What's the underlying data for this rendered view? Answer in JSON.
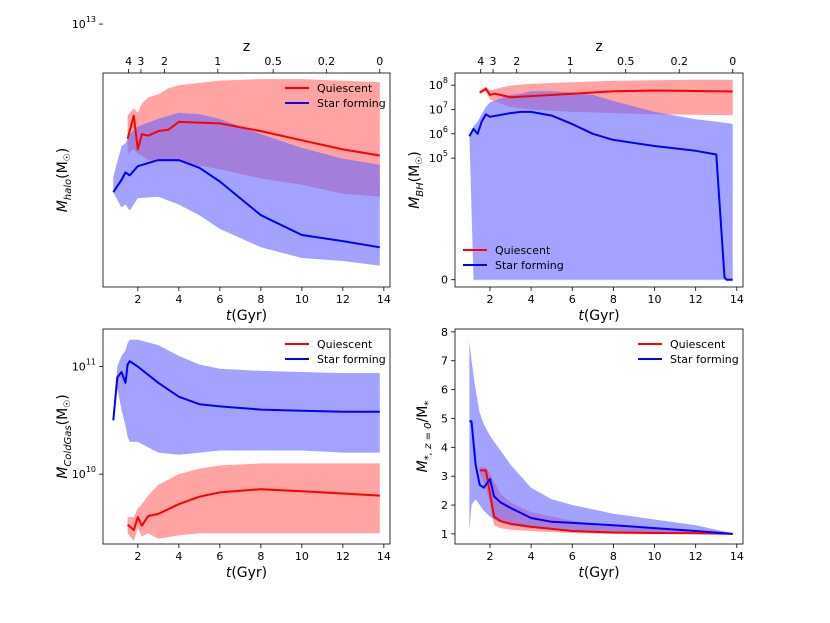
{
  "colors": {
    "quiescent": "#ff0000",
    "star_forming": "#0000ff",
    "quiescent_band": "#ff6666",
    "star_forming_band": "#6666ff"
  },
  "chart_data": [
    {
      "id": "halo",
      "type": "line",
      "title": "",
      "xlabel_t": "t",
      "xlabel_rest": "(Gyr)",
      "ylabel_main": "M",
      "ylabel_sub": "halo",
      "ylabel_tail": "(M",
      "ylabel_end": ")",
      "x_ticks": [
        "2",
        "4",
        "6",
        "8",
        "10",
        "12",
        "14"
      ],
      "y_ticks": [
        {
          "label": "10",
          "exp": "13",
          "value": 1
        }
      ],
      "top_axis": {
        "label": "z",
        "ticks": [
          "4",
          "3",
          "2",
          "1",
          "0.5",
          "0.2",
          "0"
        ]
      },
      "xlim": [
        0.3,
        14.3
      ],
      "ylim": [
        -0.72,
        0.68
      ],
      "legend": {
        "position": "top-right",
        "entries": [
          "Quiescent",
          "Star forming"
        ]
      },
      "series": [
        {
          "name": "Quiescent",
          "x": [
            1.5,
            1.8,
            2.0,
            2.2,
            2.5,
            3.0,
            3.5,
            4.0,
            6.0,
            8.0,
            10.0,
            12.0,
            13.8
          ],
          "y": [
            0.25,
            0.4,
            0.18,
            0.28,
            0.27,
            0.3,
            0.31,
            0.36,
            0.35,
            0.3,
            0.24,
            0.18,
            0.14
          ],
          "upper": [
            0.4,
            0.45,
            0.42,
            0.48,
            0.52,
            0.54,
            0.58,
            0.6,
            0.63,
            0.64,
            0.64,
            0.63,
            0.62
          ],
          "lower": [
            0.15,
            0.18,
            0.15,
            0.14,
            0.11,
            0.1,
            0.1,
            0.1,
            0.05,
            -0.01,
            -0.05,
            -0.11,
            -0.13
          ]
        },
        {
          "name": "Star forming",
          "x": [
            0.8,
            1.0,
            1.2,
            1.4,
            1.6,
            2.0,
            3.0,
            4.0,
            5.0,
            6.0,
            8.0,
            10.0,
            12.0,
            13.8
          ],
          "y": [
            -0.1,
            -0.06,
            -0.02,
            0.03,
            0.01,
            0.07,
            0.11,
            0.11,
            0.06,
            -0.03,
            -0.25,
            -0.38,
            -0.42,
            -0.46
          ],
          "upper": [
            0.0,
            0.1,
            0.2,
            0.22,
            0.28,
            0.33,
            0.38,
            0.42,
            0.41,
            0.38,
            0.28,
            0.19,
            0.12,
            0.08
          ],
          "lower": [
            -0.1,
            -0.15,
            -0.2,
            -0.18,
            -0.22,
            -0.14,
            -0.13,
            -0.18,
            -0.25,
            -0.34,
            -0.46,
            -0.53,
            -0.55,
            -0.58
          ]
        }
      ]
    },
    {
      "id": "bh",
      "type": "line",
      "title": "",
      "xlabel_t": "t",
      "xlabel_rest": "(Gyr)",
      "ylabel_main": "M",
      "ylabel_sub": "BH",
      "ylabel_tail": "(M",
      "ylabel_end": ")",
      "x_ticks": [
        "2",
        "4",
        "6",
        "8",
        "10",
        "12",
        "14"
      ],
      "y_ticks": [
        {
          "label": "0",
          "exp": "",
          "value": 0
        },
        {
          "label": "10",
          "exp": "5",
          "value": 5
        },
        {
          "label": "10",
          "exp": "6",
          "value": 6
        },
        {
          "label": "10",
          "exp": "7",
          "value": 7
        },
        {
          "label": "10",
          "exp": "8",
          "value": 8
        }
      ],
      "top_axis": {
        "label": "z",
        "ticks": [
          "4",
          "3",
          "2",
          "1",
          "0.5",
          "0.2",
          "0"
        ]
      },
      "xlim": [
        0.3,
        14.3
      ],
      "ylim": [
        -0.3,
        8.5
      ],
      "legend": {
        "position": "lower-left",
        "entries": [
          "Quiescent",
          "Star forming"
        ]
      },
      "series": [
        {
          "name": "Quiescent",
          "x": [
            1.5,
            1.8,
            2.0,
            2.2,
            2.5,
            3.0,
            4.0,
            6.0,
            8.0,
            10.0,
            12.0,
            13.8
          ],
          "y": [
            7.7,
            7.85,
            7.6,
            7.65,
            7.6,
            7.5,
            7.55,
            7.65,
            7.75,
            7.78,
            7.76,
            7.74
          ],
          "upper": [
            7.75,
            7.95,
            7.8,
            7.82,
            7.9,
            7.98,
            8.05,
            8.12,
            8.18,
            8.2,
            8.22,
            8.22
          ],
          "lower": [
            7.65,
            7.75,
            7.4,
            7.35,
            7.25,
            7.1,
            7.0,
            6.9,
            6.85,
            6.8,
            6.78,
            6.76
          ]
        },
        {
          "name": "Star forming",
          "x": [
            1.0,
            1.2,
            1.4,
            1.6,
            1.8,
            2.0,
            3.0,
            3.5,
            4.0,
            5.0,
            6.0,
            7.0,
            8.0,
            10.0,
            12.0,
            13.0,
            13.4,
            13.5,
            13.8
          ],
          "y": [
            5.9,
            6.2,
            6.0,
            6.5,
            6.8,
            6.7,
            6.85,
            6.9,
            6.9,
            6.75,
            6.4,
            6.0,
            5.75,
            5.5,
            5.3,
            5.15,
            0.1,
            0,
            0
          ],
          "upper": [
            5.9,
            6.3,
            6.5,
            6.8,
            7.1,
            7.3,
            7.6,
            7.65,
            7.75,
            7.75,
            7.7,
            7.6,
            7.35,
            6.9,
            6.6,
            6.5,
            6.45,
            6.45,
            6.4
          ],
          "lower": [
            5.9,
            0,
            0,
            0,
            0,
            0,
            0,
            0,
            0,
            0,
            0,
            0,
            0,
            0,
            0,
            0,
            0,
            0,
            0
          ]
        }
      ]
    },
    {
      "id": "coldgas",
      "type": "line",
      "title": "",
      "xlabel_t": "t",
      "xlabel_rest": "(Gyr)",
      "ylabel_main": "M",
      "ylabel_sub": "ColdGas",
      "ylabel_tail": "(M",
      "ylabel_end": ")",
      "x_ticks": [
        "2",
        "4",
        "6",
        "8",
        "10",
        "12",
        "14"
      ],
      "y_ticks": [
        {
          "label": "10",
          "exp": "10",
          "value": 10
        },
        {
          "label": "10",
          "exp": "11",
          "value": 11
        }
      ],
      "top_axis": null,
      "xlim": [
        0.3,
        14.3
      ],
      "ylim": [
        9.35,
        11.35
      ],
      "legend": {
        "position": "top-right",
        "entries": [
          "Quiescent",
          "Star forming"
        ]
      },
      "series": [
        {
          "name": "Quiescent",
          "x": [
            1.5,
            1.8,
            2.0,
            2.2,
            2.5,
            3.0,
            4.0,
            5.0,
            6.0,
            8.0,
            10.0,
            12.0,
            13.8
          ],
          "y": [
            9.53,
            9.48,
            9.6,
            9.52,
            9.61,
            9.63,
            9.72,
            9.79,
            9.83,
            9.86,
            9.84,
            9.82,
            9.8
          ],
          "upper": [
            9.6,
            9.6,
            9.68,
            9.72,
            9.8,
            9.9,
            10.0,
            10.05,
            10.08,
            10.1,
            10.1,
            10.1,
            10.1
          ],
          "lower": [
            9.45,
            9.38,
            9.5,
            9.42,
            9.45,
            9.4,
            9.43,
            9.45,
            9.45,
            9.45,
            9.45,
            9.45,
            9.45
          ]
        },
        {
          "name": "Star forming",
          "x": [
            0.8,
            1.0,
            1.2,
            1.4,
            1.5,
            1.6,
            2.0,
            3.0,
            4.0,
            5.0,
            6.0,
            8.0,
            10.0,
            12.0,
            13.8
          ],
          "y": [
            10.5,
            10.9,
            10.95,
            10.85,
            11.02,
            11.05,
            11.0,
            10.85,
            10.72,
            10.65,
            10.63,
            10.6,
            10.59,
            10.58,
            10.58
          ],
          "upper": [
            10.5,
            11.0,
            11.1,
            11.15,
            11.22,
            11.25,
            11.25,
            11.2,
            11.1,
            11.02,
            10.98,
            10.96,
            10.95,
            10.94,
            10.94
          ],
          "lower": [
            10.5,
            10.8,
            10.6,
            10.45,
            10.35,
            10.3,
            10.3,
            10.2,
            10.18,
            10.2,
            10.22,
            10.22,
            10.22,
            10.2,
            10.2
          ]
        }
      ]
    },
    {
      "id": "mass_ratio",
      "type": "line",
      "title": "",
      "xlabel_t": "t",
      "xlabel_rest": "(Gyr)",
      "ylabel_main": "M",
      "ylabel_sub": "*, z = 0",
      "ylabel_tail": "/M",
      "ylabel_end": "*",
      "x_ticks": [
        "2",
        "4",
        "6",
        "8",
        "10",
        "12",
        "14"
      ],
      "y_ticks": [
        {
          "label": "1",
          "exp": "",
          "value": 1
        },
        {
          "label": "2",
          "exp": "",
          "value": 2
        },
        {
          "label": "3",
          "exp": "",
          "value": 3
        },
        {
          "label": "4",
          "exp": "",
          "value": 4
        },
        {
          "label": "5",
          "exp": "",
          "value": 5
        },
        {
          "label": "6",
          "exp": "",
          "value": 6
        },
        {
          "label": "7",
          "exp": "",
          "value": 7
        },
        {
          "label": "8",
          "exp": "",
          "value": 8
        }
      ],
      "top_axis": null,
      "xlim": [
        0.3,
        14.3
      ],
      "ylim": [
        0.65,
        8.1
      ],
      "legend": {
        "position": "top-right",
        "entries": [
          "Quiescent",
          "Star forming"
        ]
      },
      "series": [
        {
          "name": "Quiescent",
          "x": [
            1.5,
            1.8,
            2.0,
            2.2,
            2.5,
            3.0,
            4.0,
            6.0,
            8.0,
            10.0,
            12.0,
            13.8
          ],
          "y": [
            3.2,
            3.2,
            2.4,
            1.6,
            1.45,
            1.35,
            1.25,
            1.1,
            1.05,
            1.03,
            1.02,
            1.0
          ],
          "upper": [
            3.3,
            3.3,
            3.1,
            2.8,
            2.4,
            2.1,
            1.75,
            1.45,
            1.3,
            1.2,
            1.1,
            1.0
          ],
          "lower": [
            3.1,
            2.6,
            2.0,
            1.3,
            1.2,
            1.15,
            1.1,
            1.03,
            1.0,
            1.0,
            1.0,
            1.0
          ]
        },
        {
          "name": "Star forming",
          "x": [
            1.0,
            1.1,
            1.3,
            1.5,
            1.7,
            2.0,
            2.2,
            2.5,
            3.0,
            4.0,
            5.0,
            6.0,
            8.0,
            10.0,
            12.0,
            13.8
          ],
          "y": [
            4.9,
            4.9,
            3.4,
            2.7,
            2.6,
            2.9,
            2.3,
            2.1,
            1.9,
            1.55,
            1.42,
            1.38,
            1.3,
            1.2,
            1.1,
            1.0
          ],
          "upper": [
            7.7,
            7.0,
            6.0,
            5.2,
            4.8,
            4.4,
            4.2,
            3.9,
            3.4,
            2.6,
            2.2,
            2.0,
            1.7,
            1.5,
            1.3,
            1.02
          ],
          "lower": [
            1.1,
            2.0,
            2.2,
            2.0,
            1.8,
            1.6,
            1.5,
            1.4,
            1.3,
            1.2,
            1.15,
            1.1,
            1.05,
            1.03,
            1.01,
            1.0
          ]
        }
      ]
    }
  ]
}
